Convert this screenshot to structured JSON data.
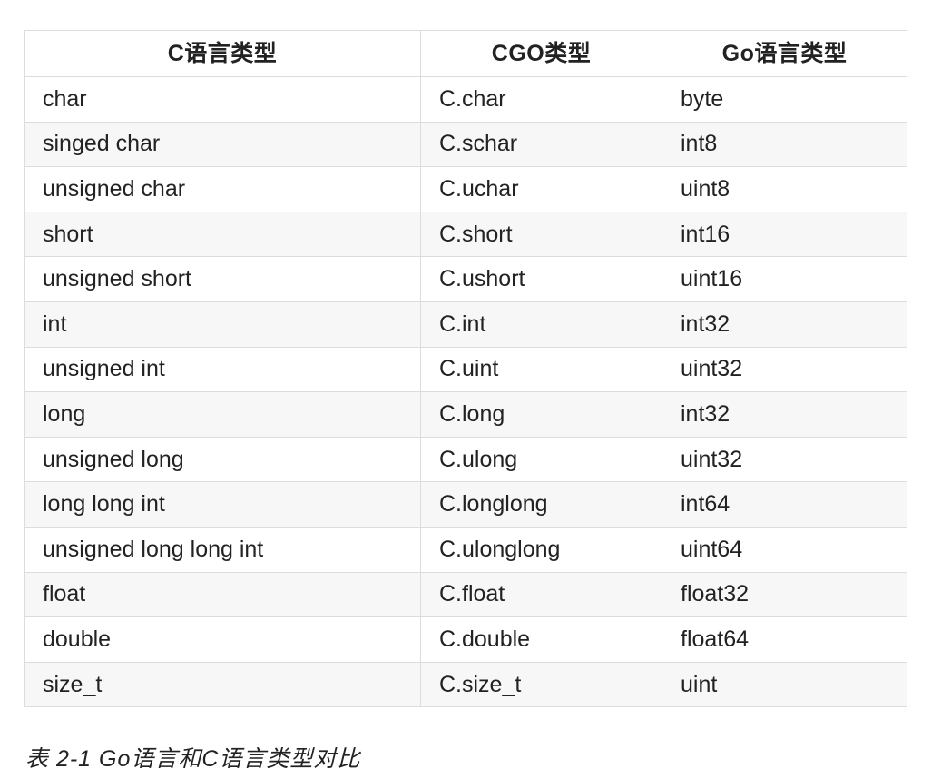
{
  "table": {
    "headers": [
      "C语言类型",
      "CGO类型",
      "Go语言类型"
    ],
    "rows": [
      [
        "char",
        "C.char",
        "byte"
      ],
      [
        "singed char",
        "C.schar",
        "int8"
      ],
      [
        "unsigned char",
        "C.uchar",
        "uint8"
      ],
      [
        "short",
        "C.short",
        "int16"
      ],
      [
        "unsigned short",
        "C.ushort",
        "uint16"
      ],
      [
        "int",
        "C.int",
        "int32"
      ],
      [
        "unsigned int",
        "C.uint",
        "uint32"
      ],
      [
        "long",
        "C.long",
        "int32"
      ],
      [
        "unsigned long",
        "C.ulong",
        "uint32"
      ],
      [
        "long long int",
        "C.longlong",
        "int64"
      ],
      [
        "unsigned long long int",
        "C.ulonglong",
        "uint64"
      ],
      [
        "float",
        "C.float",
        "float32"
      ],
      [
        "double",
        "C.double",
        "float64"
      ],
      [
        "size_t",
        "C.size_t",
        "uint"
      ]
    ]
  },
  "caption": "表 2-1 Go语言和C语言类型对比",
  "colors": {
    "border": "#dcdcdc",
    "stripe": "#f7f7f7",
    "text": "#222222"
  }
}
